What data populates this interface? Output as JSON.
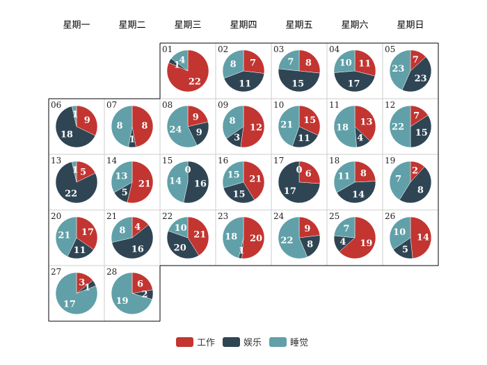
{
  "chart_data": {
    "type": "pie",
    "subtype": "calendar-pie",
    "weekdays": [
      "星期一",
      "星期二",
      "星期三",
      "星期四",
      "星期五",
      "星期六",
      "星期日"
    ],
    "start_weekday_index": 2,
    "series_names": [
      "工作",
      "娱乐",
      "睡觉"
    ],
    "colors": [
      "#c23531",
      "#2f4554",
      "#61a0a8"
    ],
    "legend_position": "bottom-center",
    "days": [
      {
        "day": "01",
        "values": [
          22,
          1,
          4
        ]
      },
      {
        "day": "02",
        "values": [
          7,
          11,
          8
        ]
      },
      {
        "day": "03",
        "values": [
          8,
          15,
          7
        ]
      },
      {
        "day": "04",
        "values": [
          11,
          17,
          10
        ]
      },
      {
        "day": "05",
        "values": [
          7,
          23,
          23
        ]
      },
      {
        "day": "06",
        "values": [
          9,
          18,
          1
        ]
      },
      {
        "day": "07",
        "values": [
          8,
          1,
          8
        ]
      },
      {
        "day": "08",
        "values": [
          9,
          9,
          24
        ]
      },
      {
        "day": "09",
        "values": [
          12,
          3,
          8
        ]
      },
      {
        "day": "10",
        "values": [
          15,
          11,
          21
        ]
      },
      {
        "day": "11",
        "values": [
          13,
          4,
          18
        ]
      },
      {
        "day": "12",
        "values": [
          7,
          15,
          22
        ]
      },
      {
        "day": "13",
        "values": [
          5,
          22,
          1
        ]
      },
      {
        "day": "14",
        "values": [
          21,
          5,
          13
        ]
      },
      {
        "day": "15",
        "values": [
          0,
          16,
          14
        ]
      },
      {
        "day": "16",
        "values": [
          21,
          15,
          15
        ]
      },
      {
        "day": "17",
        "values": [
          6,
          17,
          0
        ]
      },
      {
        "day": "18",
        "values": [
          8,
          14,
          11
        ]
      },
      {
        "day": "19",
        "values": [
          2,
          8,
          7
        ]
      },
      {
        "day": "20",
        "values": [
          17,
          11,
          21
        ]
      },
      {
        "day": "21",
        "values": [
          4,
          16,
          8
        ]
      },
      {
        "day": "22",
        "values": [
          21,
          20,
          10
        ]
      },
      {
        "day": "23",
        "values": [
          20,
          1,
          18
        ]
      },
      {
        "day": "24",
        "values": [
          9,
          8,
          22
        ]
      },
      {
        "day": "25",
        "values": [
          19,
          4,
          7
        ]
      },
      {
        "day": "26",
        "values": [
          14,
          5,
          10
        ]
      },
      {
        "day": "27",
        "values": [
          3,
          1,
          17
        ]
      },
      {
        "day": "28",
        "values": [
          6,
          2,
          19
        ]
      }
    ]
  }
}
